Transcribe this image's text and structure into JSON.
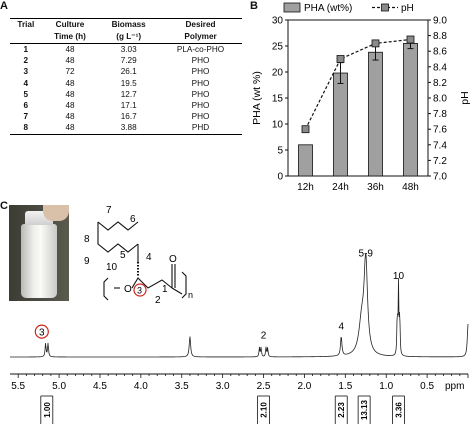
{
  "panels": {
    "a": "A",
    "b": "B",
    "c": "C"
  },
  "table": {
    "headers": [
      [
        "Trial",
        ""
      ],
      [
        "Culture",
        "Time (h)"
      ],
      [
        "Biomass",
        "(g L⁻¹)"
      ],
      [
        "Desired",
        "Polymer"
      ]
    ],
    "rows": [
      [
        "1",
        "48",
        "3.03",
        "PLA-co-PHO"
      ],
      [
        "2",
        "48",
        "7.29",
        "PHO"
      ],
      [
        "3",
        "72",
        "26.1",
        "PHO"
      ],
      [
        "4",
        "48",
        "19.5",
        "PHO"
      ],
      [
        "5",
        "48",
        "12.7",
        "PHO"
      ],
      [
        "6",
        "48",
        "17.1",
        "PHO"
      ],
      [
        "7",
        "48",
        "16.7",
        "PHO"
      ],
      [
        "8",
        "48",
        "3.88",
        "PHD"
      ]
    ]
  },
  "chart_data": [
    {
      "type": "bar",
      "categories": [
        "12h",
        "24h",
        "36h",
        "48h"
      ],
      "series": [
        {
          "name": "PHA (wt%)",
          "values": [
            6.0,
            19.8,
            23.8,
            25.5
          ],
          "errors": [
            0,
            2.0,
            1.5,
            1.0
          ],
          "axis": "left"
        },
        {
          "name": "pH",
          "values": [
            7.6,
            8.5,
            8.7,
            8.75
          ],
          "style": "dashed-line-square-markers",
          "axis": "right"
        }
      ],
      "ylabel": "PHA (wt %)",
      "ylim": [
        0,
        30
      ],
      "yticks": [
        0,
        5,
        10,
        15,
        20,
        25,
        30
      ],
      "y2label": "pH",
      "y2lim": [
        7.0,
        9.0
      ],
      "y2ticks": [
        "7.0",
        "7.2",
        "7.4",
        "7.6",
        "7.8",
        "8.0",
        "8.2",
        "8.4",
        "8.6",
        "8.8",
        "9.0"
      ],
      "legend": "top",
      "bar_color": "#a0a0a0"
    },
    {
      "type": "line",
      "name": "1H NMR spectrum",
      "xlim": [
        5.6,
        0.0
      ],
      "xticks": [
        "5.5",
        "5.0",
        "4.5",
        "4.0",
        "3.5",
        "3.0",
        "2.5",
        "2.0",
        "1.5",
        "1.0",
        "0.5"
      ],
      "xunit": "ppm",
      "peaks": [
        {
          "ppm": 5.15,
          "height": 0.13,
          "label": "3",
          "circled": true
        },
        {
          "ppm": 3.4,
          "height": 0.2
        },
        {
          "ppm": 2.5,
          "height": 0.1,
          "label": "2",
          "multiplet": true
        },
        {
          "ppm": 1.55,
          "height": 0.19,
          "label": "4"
        },
        {
          "ppm": 1.25,
          "height": 0.9,
          "label": "5-9"
        },
        {
          "ppm": 0.85,
          "height": 0.68,
          "label": "10"
        },
        {
          "ppm": 0.0,
          "height": 0.32
        }
      ],
      "integrals": [
        {
          "ppm": 5.15,
          "value": "1.00"
        },
        {
          "ppm": 2.5,
          "value": "2.10"
        },
        {
          "ppm": 1.55,
          "value": "2.23"
        },
        {
          "ppm": 1.27,
          "value": "13.13"
        },
        {
          "ppm": 0.85,
          "value": "3.36"
        }
      ]
    }
  ],
  "structure": {
    "atom_labels": [
      "7",
      "8",
      "6",
      "5",
      "9",
      "10",
      "4",
      "3",
      "2",
      "1"
    ],
    "oxygen": "O",
    "repeat": "n",
    "circled_atom": "3"
  },
  "colors": {
    "circle": "#d0251c",
    "bar": "#a0a0a0",
    "text": "#111111"
  }
}
